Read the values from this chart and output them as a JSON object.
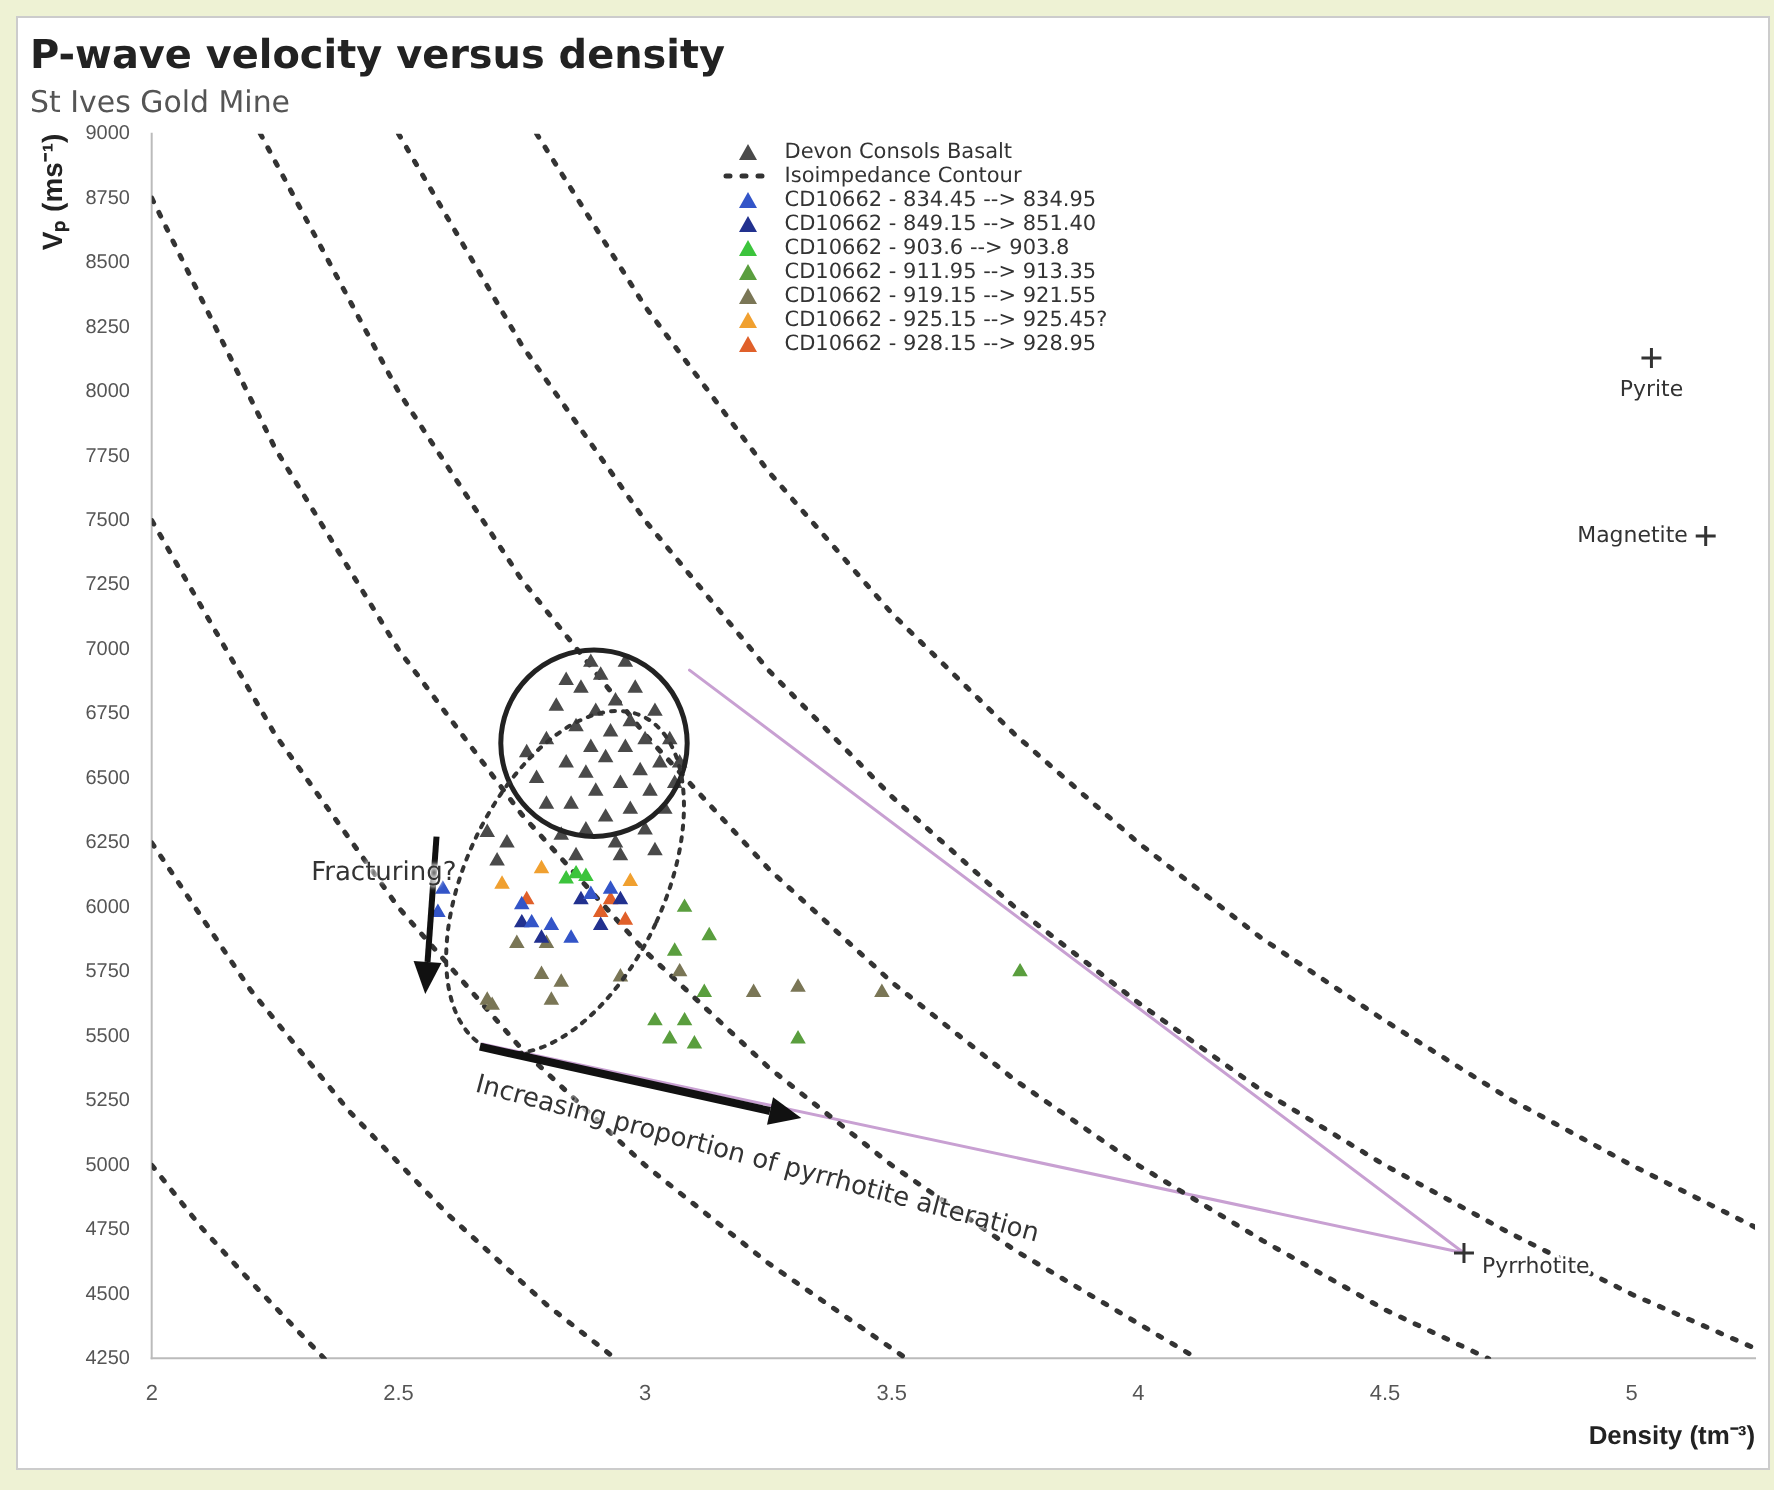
{
  "chart_data": {
    "type": "scatter",
    "title": "P-wave velocity versus density",
    "subtitle": "St Ives Gold Mine",
    "xlabel": "Density (tm⁻³)",
    "ylabel": "Vₚ (ms⁻¹)",
    "xlim": [
      2,
      5.25
    ],
    "ylim": [
      4250,
      9000
    ],
    "xticks": [
      2,
      2.5,
      3,
      3.5,
      4,
      4.5,
      5
    ],
    "yticks": [
      4250,
      4500,
      4750,
      5000,
      5250,
      5500,
      5750,
      6000,
      6250,
      6500,
      6750,
      7000,
      7250,
      7500,
      7750,
      8000,
      8250,
      8500,
      8750,
      9000
    ],
    "marker": "triangle",
    "legend": "top",
    "series": [
      {
        "name": "Devon Consols Basalt",
        "color": "#4a4a4a",
        "x": [
          2.78,
          2.8,
          2.82,
          2.84,
          2.85,
          2.86,
          2.87,
          2.88,
          2.88,
          2.89,
          2.9,
          2.9,
          2.91,
          2.92,
          2.92,
          2.93,
          2.94,
          2.94,
          2.95,
          2.96,
          2.97,
          2.97,
          2.98,
          2.99,
          3.0,
          3.0,
          3.01,
          3.02,
          3.03,
          3.04,
          3.05,
          3.06,
          2.83,
          2.86,
          2.95,
          3.02,
          2.8,
          2.76,
          2.89,
          2.96,
          3.07,
          2.84,
          2.68,
          2.72,
          2.7
        ],
        "values": [
          6500,
          6650,
          6780,
          6560,
          6400,
          6700,
          6850,
          6300,
          6520,
          6620,
          6760,
          6450,
          6900,
          6350,
          6580,
          6680,
          6800,
          6250,
          6480,
          6620,
          6720,
          6380,
          6850,
          6530,
          6300,
          6650,
          6450,
          6760,
          6560,
          6380,
          6650,
          6480,
          6280,
          6200,
          6200,
          6220,
          6400,
          6600,
          6950,
          6950,
          6560,
          6880,
          6290,
          6250,
          6180
        ]
      },
      {
        "name": "Isoimpedance Contour",
        "type": "line",
        "line_style": "dotted",
        "marker": "none",
        "color": "#333333",
        "x": [
          2.0,
          2.1,
          2.2,
          2.35
        ],
        "values": [
          5000,
          4760,
          4550,
          4250
        ]
      },
      {
        "type": "line",
        "line_style": "dotted",
        "marker": "none",
        "color": "#333333",
        "x": [
          2.0,
          2.2,
          2.4,
          2.6,
          2.8,
          2.94
        ],
        "values": [
          6250,
          5680,
          5210,
          4810,
          4460,
          4250
        ]
      },
      {
        "type": "line",
        "line_style": "dotted",
        "marker": "none",
        "color": "#333333",
        "x": [
          2.0,
          2.25,
          2.5,
          2.75,
          3.0,
          3.25,
          3.53
        ],
        "values": [
          7500,
          6670,
          6000,
          5450,
          5000,
          4620,
          4250
        ]
      },
      {
        "type": "line",
        "line_style": "dotted",
        "marker": "none",
        "color": "#333333",
        "x": [
          2.0,
          2.25,
          2.5,
          2.75,
          3.0,
          3.25,
          3.5,
          3.75,
          4.12
        ],
        "values": [
          8750,
          7780,
          7000,
          6360,
          5830,
          5380,
          5000,
          4670,
          4250
        ]
      },
      {
        "type": "line",
        "line_style": "dotted",
        "marker": "none",
        "color": "#333333",
        "x": [
          2.22,
          2.5,
          2.75,
          3.0,
          3.25,
          3.5,
          3.75,
          4.0,
          4.25,
          4.5,
          4.71
        ],
        "values": [
          9000,
          8000,
          7270,
          6670,
          6150,
          5710,
          5330,
          5000,
          4710,
          4440,
          4250
        ]
      },
      {
        "type": "line",
        "line_style": "dotted",
        "marker": "none",
        "color": "#333333",
        "x": [
          2.5,
          2.75,
          3.0,
          3.25,
          3.5,
          3.75,
          4.0,
          4.25,
          4.5,
          4.75,
          5.0,
          5.25
        ],
        "values": [
          9000,
          8180,
          7500,
          6920,
          6430,
          6000,
          5630,
          5290,
          5000,
          4740,
          4500,
          4290
        ]
      },
      {
        "type": "line",
        "line_style": "dotted",
        "marker": "none",
        "color": "#333333",
        "x": [
          2.78,
          3.0,
          3.25,
          3.5,
          3.75,
          4.0,
          4.25,
          4.5,
          4.75,
          5.0,
          5.25
        ],
        "values": [
          9000,
          8330,
          7690,
          7140,
          6670,
          6250,
          5880,
          5560,
          5260,
          5000,
          4760
        ]
      },
      {
        "name": "CD10662 - 834.45 --> 834.95",
        "color": "#3355c8",
        "x": [
          2.75,
          2.77,
          2.81,
          2.85,
          2.89,
          2.93,
          2.59,
          2.58
        ],
        "values": [
          6010,
          5940,
          5930,
          5880,
          6050,
          6070,
          6070,
          5980
        ]
      },
      {
        "name": "CD10662 - 849.15 --> 851.40",
        "color": "#22318f",
        "x": [
          2.75,
          2.79,
          2.87,
          2.95,
          2.91
        ],
        "values": [
          5940,
          5880,
          6030,
          6030,
          5930
        ]
      },
      {
        "name": "CD10662 - 903.6 --> 903.8",
        "color": "#3cc43c",
        "x": [
          2.86,
          2.88,
          2.84
        ],
        "values": [
          6130,
          6120,
          6110
        ]
      },
      {
        "name": "CD10662 - 911.95 --> 913.35",
        "color": "#5a9e3e",
        "x": [
          3.08,
          3.13,
          3.06,
          3.12,
          3.02,
          3.08,
          3.05,
          3.1,
          3.31,
          3.76
        ],
        "values": [
          6000,
          5890,
          5830,
          5670,
          5560,
          5560,
          5490,
          5470,
          5490,
          5750
        ]
      },
      {
        "name": "CD10662 - 919.15 --> 921.55",
        "color": "#7a7656",
        "x": [
          2.74,
          2.8,
          2.79,
          2.83,
          2.81,
          2.68,
          2.69,
          2.95,
          3.07,
          3.22,
          3.31,
          3.48
        ],
        "values": [
          5860,
          5860,
          5740,
          5710,
          5640,
          5640,
          5620,
          5730,
          5750,
          5670,
          5690,
          5670
        ]
      },
      {
        "name": "CD10662 - 925.15 --> 925.45?",
        "color": "#f0a030",
        "x": [
          2.71,
          2.79,
          2.97
        ],
        "values": [
          6090,
          6150,
          6100
        ]
      },
      {
        "name": "CD10662 - 928.15 --> 928.95",
        "color": "#e0602a",
        "x": [
          2.91,
          2.96,
          2.93,
          2.76
        ],
        "values": [
          5980,
          5950,
          6030,
          6030
        ]
      },
      {
        "type": "line",
        "marker": "none",
        "color": "#c8a0d2",
        "x": [
          3.09,
          4.66,
          2.67
        ],
        "values": [
          6920,
          4660,
          5470
        ]
      },
      {
        "marker": "cross",
        "color": "#333333",
        "x": [
          5.04,
          5.15,
          4.66
        ],
        "values": [
          8130,
          7440,
          4660
        ]
      }
    ],
    "annotations": [
      "Fracturing?",
      "Increasing proportion of pyrrhotite alteration",
      {
        "text": "Pyrite",
        "x": 5.04,
        "y": 8130
      },
      {
        "text": "Magnetite",
        "x": 5.15,
        "y": 7440
      },
      {
        "text": "Pyrrhotite",
        "x": 4.66,
        "y": 4660
      }
    ]
  }
}
